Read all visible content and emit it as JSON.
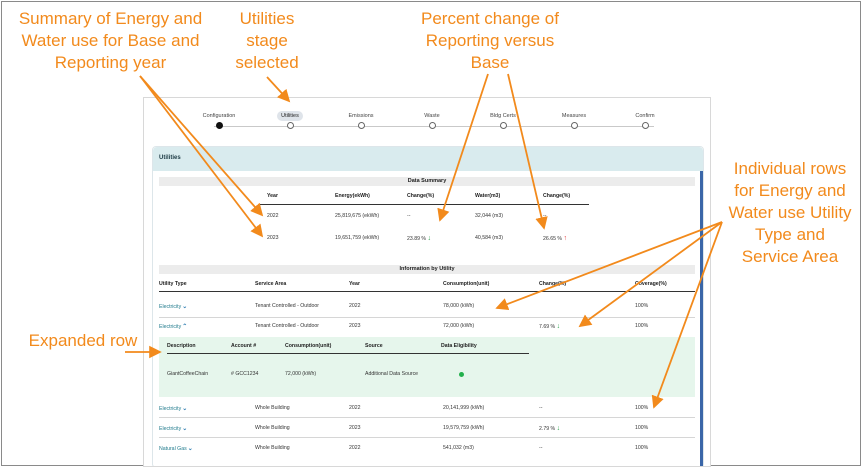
{
  "annotations": {
    "summary": "Summary of Energy and Water use for Base and Reporting year",
    "utilities": "Utilities stage selected",
    "percent": "Percent change of Reporting versus Base",
    "rows": "Individual rows for Energy and Water use Utility Type and Service Area",
    "expanded": "Expanded row"
  },
  "stepper": [
    {
      "label": "Configuration",
      "state": "complete"
    },
    {
      "label": "Utilities",
      "state": "active"
    },
    {
      "label": "Emissions",
      "state": "pending"
    },
    {
      "label": "Waste",
      "state": "pending"
    },
    {
      "label": "Bldg Certs",
      "state": "pending"
    },
    {
      "label": "Measures",
      "state": "pending"
    },
    {
      "label": "Confirm",
      "state": "pending"
    }
  ],
  "panel": {
    "title": "Utilities"
  },
  "summary": {
    "title": "Data Summary",
    "headers": [
      "Year",
      "Energy(ekWh)",
      "Change(%)",
      "Water(m3)",
      "Change(%)"
    ],
    "rows": [
      {
        "year": "2022",
        "energy": "25,819,675 (ekWh)",
        "energy_change": "--",
        "water": "32,044 (m3)",
        "water_change": "--"
      },
      {
        "year": "2023",
        "energy": "19,651,759 (ekWh)",
        "energy_change": "23.89 %",
        "water": "40,584 (m3)",
        "water_change": "26.65 %"
      }
    ]
  },
  "utility": {
    "title": "Information by Utility",
    "headers": [
      "Utility Type",
      "Service Area",
      "Year",
      "Consumption(unit)",
      "Change(%)",
      "Coverage(%)"
    ],
    "rows": [
      {
        "type": "Electricity",
        "area": "Tenant Controlled - Outdoor",
        "year": "2022",
        "consumption": "78,000 (kWh)",
        "change": "",
        "coverage": "100%"
      },
      {
        "type": "Electricity",
        "area": "Tenant Controlled - Outdoor",
        "year": "2023",
        "consumption": "72,000 (kWh)",
        "change": "7.69 %",
        "coverage": "100%"
      },
      {
        "type": "Electricity",
        "area": "Whole Building",
        "year": "2022",
        "consumption": "20,141,999 (kWh)",
        "change": "--",
        "coverage": "100%"
      },
      {
        "type": "Electricity",
        "area": "Whole Building",
        "year": "2023",
        "consumption": "19,579,759 (kWh)",
        "change": "2.79 %",
        "coverage": "100%"
      },
      {
        "type": "Natural Gas",
        "area": "Whole Building",
        "year": "2022",
        "consumption": "541,032 (m3)",
        "change": "--",
        "coverage": "100%"
      }
    ],
    "expanded": {
      "headers": [
        "Description",
        "Account #",
        "Consumption(unit)",
        "Source",
        "Data Eligibility"
      ],
      "row": {
        "description": "GiantCoffeeChain",
        "account": "# GCC1234",
        "consumption": "72,000 (kWh)",
        "source": "Additional Data Source"
      }
    }
  },
  "colors": {
    "annotation": "#f28a1c",
    "positive": "#2ea44f",
    "negative": "#e03a3a",
    "header_bg": "#d9ebee",
    "expanded_bg": "#e6f6ec"
  }
}
